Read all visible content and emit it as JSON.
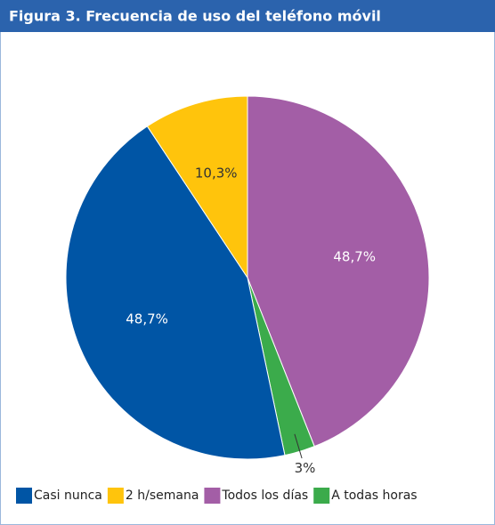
{
  "chart_data": {
    "type": "pie",
    "title": "Figura 3. Frecuencia de uso del teléfono móvil",
    "categories": [
      "Casi nunca",
      "2 h/semana",
      "Todos los días",
      "A todas horas"
    ],
    "values": [
      48.7,
      10.3,
      48.7,
      3
    ],
    "value_labels": [
      "48,7%",
      "10,3%",
      "48,7%",
      "3%"
    ],
    "colors": [
      "#0055a5",
      "#ffc40c",
      "#a35ea6",
      "#3bab4b"
    ],
    "legend": "bottom"
  }
}
